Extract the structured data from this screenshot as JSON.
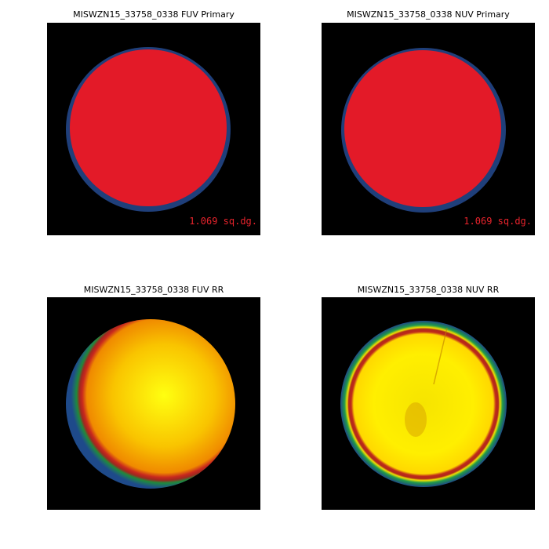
{
  "panels": [
    {
      "title": "MISWZN15_33758_0338 FUV Primary",
      "area_label": "1.069 sq.dg."
    },
    {
      "title": "MISWZN15_33758_0338 NUV Primary",
      "area_label": "1.069 sq.dg."
    },
    {
      "title": "MISWZN15_33758_0338 FUV RR"
    },
    {
      "title": "MISWZN15_33758_0338 NUV RR"
    }
  ]
}
